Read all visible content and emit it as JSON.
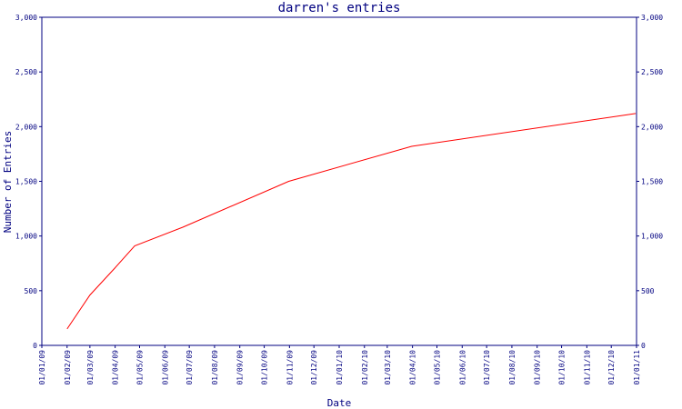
{
  "chart_data": {
    "type": "line",
    "title": "darren's entries",
    "xlabel": "Date",
    "ylabel": "Number of Entries",
    "x_ticks": [
      "01/01/09",
      "01/02/09",
      "01/03/09",
      "01/04/09",
      "01/05/09",
      "01/06/09",
      "01/07/09",
      "01/08/09",
      "01/09/09",
      "01/10/09",
      "01/11/09",
      "01/12/09",
      "01/01/10",
      "01/02/10",
      "01/03/10",
      "01/04/10",
      "01/05/10",
      "01/06/10",
      "01/07/10",
      "01/08/10",
      "01/09/10",
      "01/10/10",
      "01/11/10",
      "01/12/10",
      "01/01/11"
    ],
    "y_ticks": [
      0,
      500,
      1000,
      1500,
      2000,
      2500,
      3000
    ],
    "y_tick_labels": [
      "0",
      "500",
      "1,000",
      "1,500",
      "2,000",
      "2,500",
      "3,000"
    ],
    "ylim": [
      0,
      3000
    ],
    "xlim": [
      "2009-01-01",
      "2011-01-01"
    ],
    "grid": false,
    "right_axis": true,
    "series": [
      {
        "color": "#ff0000",
        "points": [
          {
            "x": "2009-02-01",
            "y": 150
          },
          {
            "x": "2009-03-01",
            "y": 460
          },
          {
            "x": "2009-04-01",
            "y": 710
          },
          {
            "x": "2009-04-25",
            "y": 910
          },
          {
            "x": "2009-06-23",
            "y": 1080
          },
          {
            "x": "2009-10-31",
            "y": 1500
          },
          {
            "x": "2010-03-31",
            "y": 1820
          },
          {
            "x": "2010-12-31",
            "y": 2120
          }
        ]
      }
    ]
  }
}
